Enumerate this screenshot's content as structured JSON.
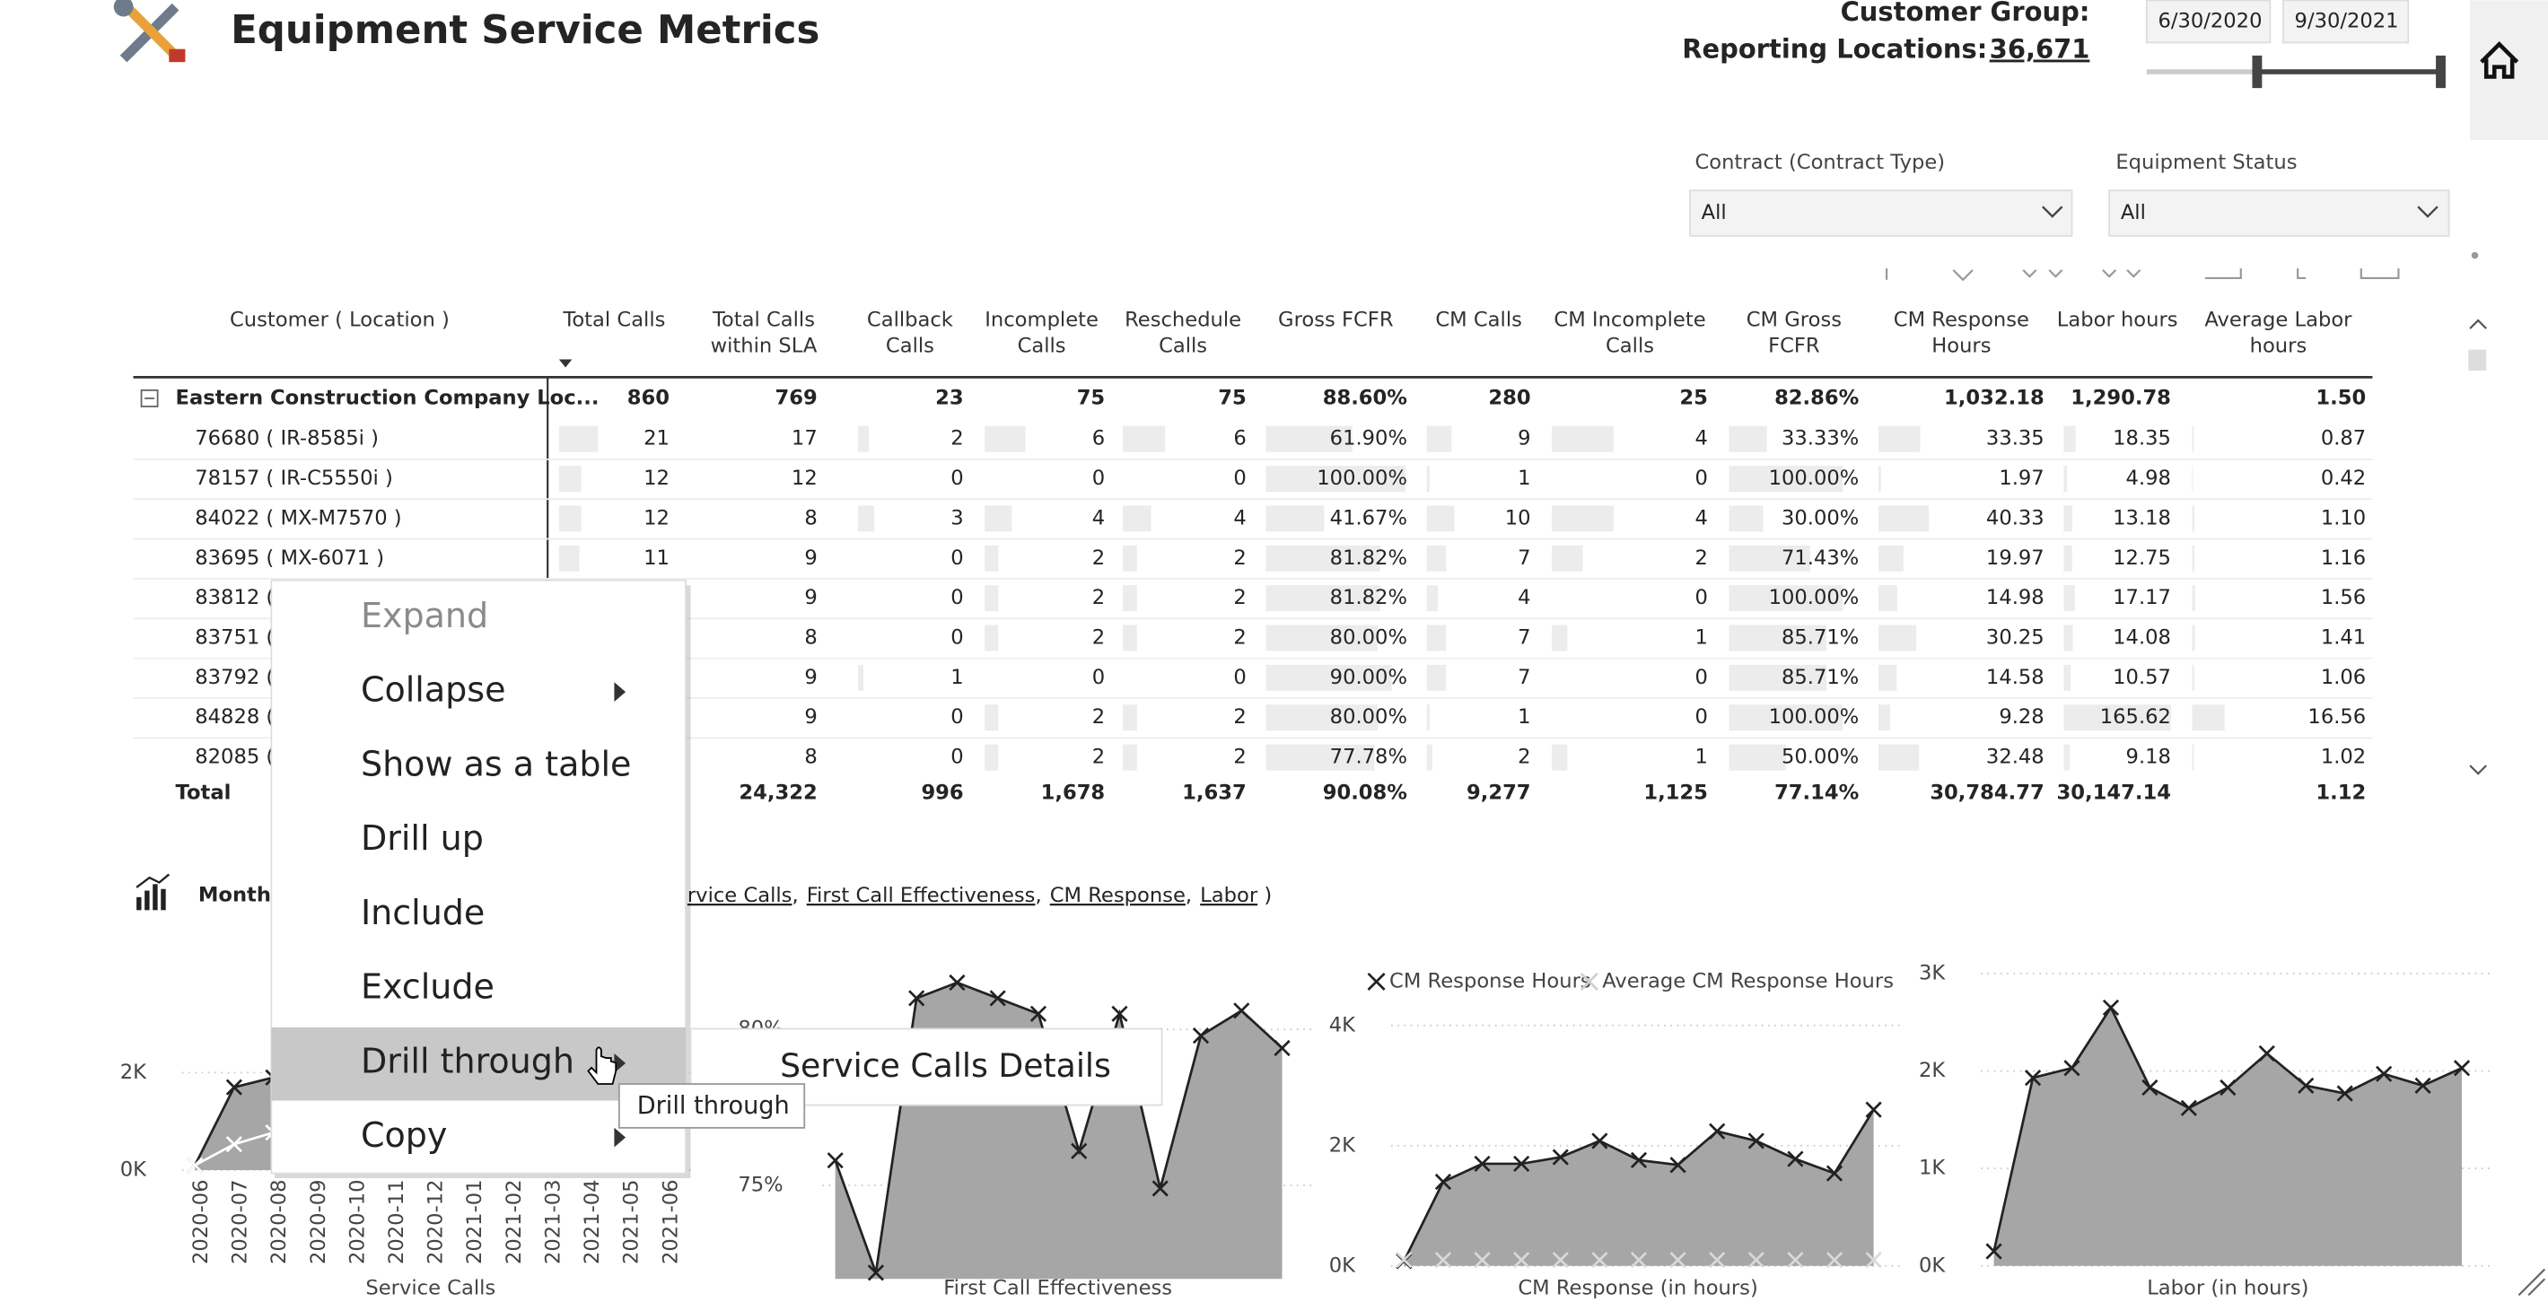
{
  "header": {
    "title": "Equipment Service Metrics",
    "customer_group_label": "Customer Group:",
    "reporting_locations_label": "Reporting Locations:",
    "reporting_locations_value": "36,671"
  },
  "date_range": {
    "start": "6/30/2020",
    "end": "9/30/2021"
  },
  "filters": [
    {
      "label": "Contract (Contract Type)",
      "value": "All"
    },
    {
      "label": "Equipment Status",
      "value": "All"
    }
  ],
  "table": {
    "columns": [
      [
        "Customer ( Location )"
      ],
      [
        "Total Calls"
      ],
      [
        "Total Calls",
        "within SLA"
      ],
      [
        "Callback",
        "Calls"
      ],
      [
        "Incomplete",
        "Calls"
      ],
      [
        "Reschedule",
        "Calls"
      ],
      [
        "Gross FCFR"
      ],
      [
        "CM Calls"
      ],
      [
        "CM Incomplete",
        "Calls"
      ],
      [
        "CM Gross",
        "FCFR"
      ],
      [
        "CM Response",
        "Hours"
      ],
      [
        "Labor hours"
      ],
      [
        "Average Labor",
        "hours"
      ]
    ],
    "group_row": [
      "Eastern Construction Company Loc...",
      "860",
      "769",
      "23",
      "75",
      "75",
      "88.60%",
      "280",
      "25",
      "82.86%",
      "1,032.18",
      "1,290.78",
      "1.50"
    ],
    "rows": [
      [
        "76680 ( IR-8585i )",
        "21",
        "17",
        "2",
        "6",
        "6",
        "61.90%",
        "9",
        "4",
        "33.33%",
        "33.35",
        "18.35",
        "0.87"
      ],
      [
        "78157 ( IR-C5550i )",
        "12",
        "12",
        "0",
        "0",
        "0",
        "100.00%",
        "1",
        "0",
        "100.00%",
        "1.97",
        "4.98",
        "0.42"
      ],
      [
        "84022 ( MX-M7570 )",
        "12",
        "8",
        "3",
        "4",
        "4",
        "41.67%",
        "10",
        "4",
        "30.00%",
        "40.33",
        "13.18",
        "1.10"
      ],
      [
        "83695 ( MX-6071 )",
        "11",
        "9",
        "0",
        "2",
        "2",
        "81.82%",
        "7",
        "2",
        "71.43%",
        "19.97",
        "12.75",
        "1.16"
      ],
      [
        "83812 (",
        null,
        "9",
        "0",
        "2",
        "2",
        "81.82%",
        "4",
        "0",
        "100.00%",
        "14.98",
        "17.17",
        "1.56"
      ],
      [
        "83751 (",
        null,
        "8",
        "0",
        "2",
        "2",
        "80.00%",
        "7",
        "1",
        "85.71%",
        "30.25",
        "14.08",
        "1.41"
      ],
      [
        "83792 (",
        null,
        "9",
        "1",
        "0",
        "0",
        "90.00%",
        "7",
        "0",
        "85.71%",
        "14.58",
        "10.57",
        "1.06"
      ],
      [
        "84828 (",
        null,
        "9",
        "0",
        "2",
        "2",
        "80.00%",
        "1",
        "0",
        "100.00%",
        "9.28",
        "165.62",
        "16.56"
      ],
      [
        "82085 (",
        null,
        "8",
        "0",
        "2",
        "2",
        "77.78%",
        "2",
        "1",
        "50.00%",
        "32.48",
        "9.18",
        "1.02"
      ]
    ],
    "total_row": [
      "Total",
      null,
      "24,322",
      "996",
      "1,678",
      "1,637",
      "90.08%",
      "9,277",
      "1,125",
      "77.14%",
      "30,784.77",
      "30,147.14",
      "1.12"
    ]
  },
  "visual_header": {
    "label": "Month",
    "links": [
      "rvice Calls",
      "First Call Effectiveness",
      "CM Response",
      "Labor"
    ],
    "separator": ",",
    "closing": ")"
  },
  "context_menu": {
    "items": [
      {
        "label": "Expand",
        "disabled": true
      },
      {
        "label": "Collapse",
        "submenu": true
      },
      {
        "label": "Show as a table"
      },
      {
        "label": "Drill up"
      },
      {
        "label": "Include"
      },
      {
        "label": "Exclude"
      },
      {
        "label": "Drill through",
        "submenu": true,
        "highlighted": true
      },
      {
        "label": "Copy",
        "submenu": true
      }
    ],
    "submenu_items": [
      "Service Calls Details"
    ],
    "tooltip": "Drill through"
  },
  "chart_data": [
    {
      "type": "area",
      "title": "Service Calls",
      "fill": "#a6a6a6",
      "categories": [
        "2020-06",
        "2020-07",
        "2020-08",
        "2020-09",
        "2020-10",
        "2020-11",
        "2020-12",
        "2021-01",
        "2021-02",
        "2021-03",
        "2021-04",
        "2021-05",
        "2021-06"
      ],
      "series": [
        {
          "color": "#222222",
          "values": [
            100,
            1700,
            1900,
            null,
            null,
            null,
            null,
            null,
            null,
            null,
            null,
            null,
            null
          ]
        },
        {
          "color": "#ffffff",
          "values": [
            100,
            530,
            770,
            null,
            null,
            null,
            null,
            null,
            null,
            null,
            null,
            null,
            null
          ]
        }
      ],
      "ylim": [
        0,
        3700
      ],
      "yticks": [
        {
          "value": 0,
          "label": "0K"
        },
        {
          "value": 2000,
          "label": "2K"
        }
      ],
      "grid": true
    },
    {
      "type": "area",
      "title": "First Call Effectiveness",
      "fill": "#a6a6a6",
      "series": [
        {
          "color": "#222222",
          "values": [
            75.8,
            72.2,
            81,
            81.5,
            81,
            80.5,
            76.1,
            80.5,
            74.9,
            79.8,
            80.6,
            79.4
          ]
        }
      ],
      "ylim": [
        72,
        82
      ],
      "yticks": [
        {
          "value": 75,
          "label": "75%"
        },
        {
          "value": 80,
          "label": "80%"
        }
      ],
      "grid": true
    },
    {
      "type": "area",
      "title": "CM Response (in hours)",
      "fill": "#a6a6a6",
      "series": [
        {
          "name": "CM Response Hours",
          "color": "#222222",
          "values": [
            80,
            1400,
            1700,
            1700,
            1810,
            2080,
            1760,
            1680,
            2240,
            2080,
            1780,
            1540,
            2600
          ]
        },
        {
          "name": "Average CM Response Hours",
          "color": "#d9d9d9",
          "line": false,
          "values": [
            100,
            100,
            100,
            100,
            100,
            100,
            100,
            100,
            100,
            100,
            100,
            100,
            100
          ]
        }
      ],
      "ylim": [
        0,
        4200
      ],
      "yticks": [
        {
          "value": 0,
          "label": "0K"
        },
        {
          "value": 2000,
          "label": "2K"
        },
        {
          "value": 4000,
          "label": "4K"
        }
      ],
      "grid": true
    },
    {
      "type": "area",
      "title": "Labor (in hours)",
      "fill": "#a6a6a6",
      "series": [
        {
          "color": "#222222",
          "values": [
            150,
            1930,
            2030,
            2650,
            1830,
            1620,
            1830,
            2180,
            1850,
            1770,
            1970,
            1850,
            2030
          ]
        }
      ],
      "ylim": [
        0,
        3000
      ],
      "yticks": [
        {
          "value": 0,
          "label": "0K"
        },
        {
          "value": 1000,
          "label": "1K"
        },
        {
          "value": 2000,
          "label": "2K"
        },
        {
          "value": 3000,
          "label": "3K"
        }
      ],
      "grid": true
    }
  ]
}
